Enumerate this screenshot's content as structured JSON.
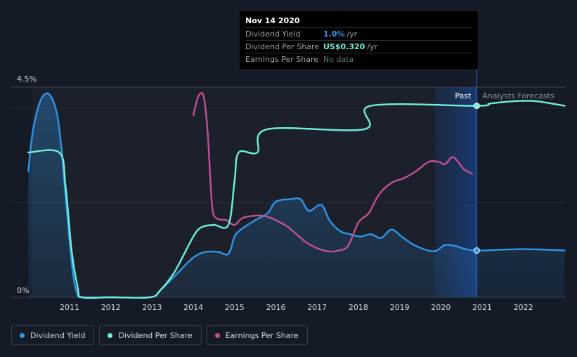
{
  "tooltip": {
    "date": "Nov 14 2020",
    "rows": [
      {
        "label": "Dividend Yield",
        "value": "1.0%",
        "unit": "/yr"
      },
      {
        "label": "Dividend Per Share",
        "value": "US$0.320",
        "unit": "/yr"
      },
      {
        "label": "Earnings Per Share",
        "value": "No data",
        "unit": ""
      }
    ]
  },
  "region_labels": {
    "past": "Past",
    "forecast": "Analysts Forecasts"
  },
  "legend": [
    {
      "label": "Dividend Yield",
      "color": "#2f95e8"
    },
    {
      "label": "Dividend Per Share",
      "color": "#6ff0dc"
    },
    {
      "label": "Earnings Per Share",
      "color": "#c44f96"
    }
  ],
  "chart_data": {
    "type": "line",
    "ylim": [
      0,
      4.5
    ],
    "y_tick_labels": [
      "4.5%",
      "0%"
    ],
    "x_ticks": [
      2011,
      2012,
      2013,
      2014,
      2015,
      2016,
      2017,
      2018,
      2019,
      2020,
      2021,
      2022
    ],
    "x_range": [
      2010.0,
      2023.0
    ],
    "past_end": 2020.87,
    "forecast_band_start": 2019.85,
    "grid": true,
    "series": [
      {
        "name": "Dividend Yield",
        "color": "#2f95e8",
        "area": true,
        "points": [
          [
            2010.0,
            2.7
          ],
          [
            2010.1,
            3.5
          ],
          [
            2010.25,
            4.1
          ],
          [
            2010.4,
            4.35
          ],
          [
            2010.55,
            4.3
          ],
          [
            2010.7,
            3.9
          ],
          [
            2010.8,
            3.2
          ],
          [
            2010.9,
            2.2
          ],
          [
            2011.0,
            1.2
          ],
          [
            2011.1,
            0.4
          ],
          [
            2011.2,
            0.05
          ],
          [
            2011.3,
            0.0
          ],
          [
            2012.0,
            0.0
          ],
          [
            2012.95,
            0.0
          ],
          [
            2013.2,
            0.15
          ],
          [
            2013.6,
            0.5
          ],
          [
            2014.0,
            0.85
          ],
          [
            2014.3,
            0.97
          ],
          [
            2014.6,
            0.97
          ],
          [
            2014.85,
            0.93
          ],
          [
            2015.0,
            1.3
          ],
          [
            2015.15,
            1.45
          ],
          [
            2015.5,
            1.65
          ],
          [
            2015.8,
            1.8
          ],
          [
            2016.0,
            2.05
          ],
          [
            2016.35,
            2.1
          ],
          [
            2016.6,
            2.1
          ],
          [
            2016.8,
            1.85
          ],
          [
            2017.1,
            1.98
          ],
          [
            2017.3,
            1.65
          ],
          [
            2017.55,
            1.42
          ],
          [
            2017.8,
            1.35
          ],
          [
            2018.05,
            1.3
          ],
          [
            2018.3,
            1.35
          ],
          [
            2018.55,
            1.27
          ],
          [
            2018.8,
            1.45
          ],
          [
            2019.05,
            1.3
          ],
          [
            2019.35,
            1.12
          ],
          [
            2019.7,
            1.0
          ],
          [
            2019.9,
            1.0
          ],
          [
            2020.1,
            1.12
          ],
          [
            2020.35,
            1.1
          ],
          [
            2020.6,
            1.03
          ],
          [
            2020.87,
            1.0
          ],
          [
            2021.5,
            1.02
          ],
          [
            2022.0,
            1.03
          ],
          [
            2022.5,
            1.02
          ],
          [
            2023.0,
            1.0
          ]
        ]
      },
      {
        "name": "Dividend Per Share",
        "color": "#6ff0dc",
        "area": false,
        "points": [
          [
            2010.0,
            3.1
          ],
          [
            2010.75,
            3.1
          ],
          [
            2010.9,
            2.4
          ],
          [
            2011.05,
            1.0
          ],
          [
            2011.2,
            0.2
          ],
          [
            2011.3,
            0.0
          ],
          [
            2012.0,
            0.0
          ],
          [
            2012.95,
            0.0
          ],
          [
            2013.2,
            0.15
          ],
          [
            2013.55,
            0.55
          ],
          [
            2014.0,
            1.3
          ],
          [
            2014.2,
            1.5
          ],
          [
            2014.5,
            1.55
          ],
          [
            2014.85,
            1.55
          ],
          [
            2015.0,
            2.5
          ],
          [
            2015.1,
            3.1
          ],
          [
            2015.55,
            3.1
          ],
          [
            2015.8,
            3.6
          ],
          [
            2018.15,
            3.6
          ],
          [
            2018.3,
            4.1
          ],
          [
            2020.87,
            4.1
          ],
          [
            2021.2,
            4.15
          ],
          [
            2021.8,
            4.2
          ],
          [
            2022.3,
            4.2
          ],
          [
            2023.0,
            4.1
          ]
        ]
      },
      {
        "name": "Earnings Per Share",
        "color": "#c44f96",
        "area": false,
        "points": [
          [
            2014.0,
            3.9
          ],
          [
            2014.12,
            4.3
          ],
          [
            2014.25,
            4.3
          ],
          [
            2014.35,
            3.5
          ],
          [
            2014.45,
            2.0
          ],
          [
            2014.55,
            1.7
          ],
          [
            2014.8,
            1.65
          ],
          [
            2015.0,
            1.55
          ],
          [
            2015.2,
            1.7
          ],
          [
            2015.6,
            1.75
          ],
          [
            2015.8,
            1.72
          ],
          [
            2016.0,
            1.65
          ],
          [
            2016.3,
            1.5
          ],
          [
            2016.7,
            1.2
          ],
          [
            2017.0,
            1.05
          ],
          [
            2017.3,
            0.98
          ],
          [
            2017.5,
            1.0
          ],
          [
            2017.75,
            1.1
          ],
          [
            2018.0,
            1.6
          ],
          [
            2018.25,
            1.8
          ],
          [
            2018.5,
            2.2
          ],
          [
            2018.8,
            2.45
          ],
          [
            2019.1,
            2.55
          ],
          [
            2019.4,
            2.7
          ],
          [
            2019.7,
            2.9
          ],
          [
            2019.95,
            2.9
          ],
          [
            2020.1,
            2.85
          ],
          [
            2020.3,
            3.0
          ],
          [
            2020.55,
            2.75
          ],
          [
            2020.75,
            2.65
          ]
        ]
      }
    ]
  }
}
